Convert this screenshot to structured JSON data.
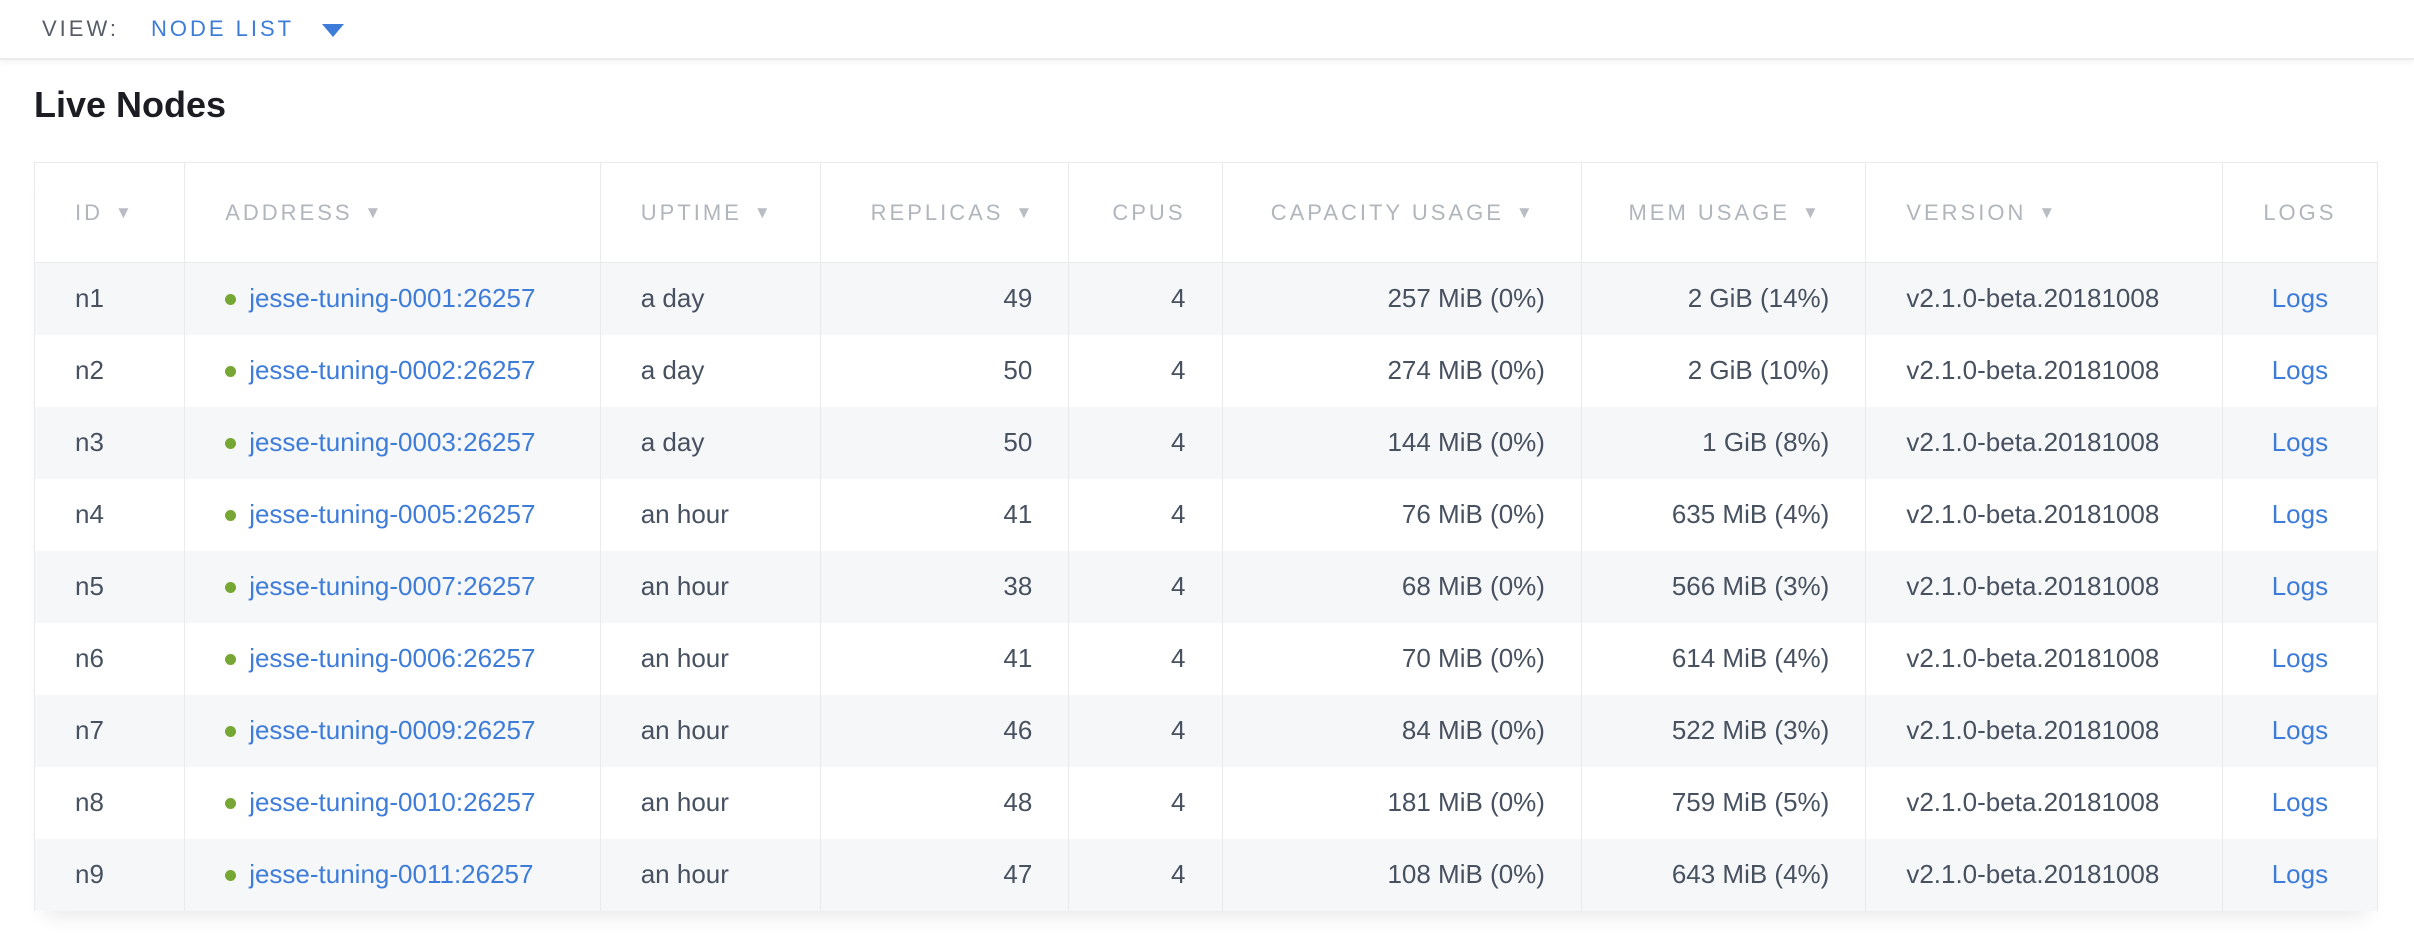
{
  "view_bar": {
    "label": "VIEW:",
    "selected_view": "NODE LIST"
  },
  "page": {
    "title": "Live Nodes"
  },
  "colors": {
    "link_blue": "#3E7CD9",
    "status_live_green": "#76A633",
    "header_text_gray": "#B1B5BC",
    "cell_text_slate": "#475160",
    "row_stripe": "#F6F7F8"
  },
  "table": {
    "columns": [
      {
        "key": "id",
        "label": "ID",
        "sortable": true,
        "align": "left",
        "header_align": "left"
      },
      {
        "key": "address",
        "label": "ADDRESS",
        "sortable": true,
        "align": "left",
        "header_align": "left"
      },
      {
        "key": "uptime",
        "label": "UPTIME",
        "sortable": true,
        "align": "left",
        "header_align": "left"
      },
      {
        "key": "replicas",
        "label": "REPLICAS",
        "sortable": true,
        "align": "right",
        "header_align": "right"
      },
      {
        "key": "cpus",
        "label": "CPUS",
        "sortable": false,
        "align": "right",
        "header_align": "right"
      },
      {
        "key": "capacity_usage",
        "label": "CAPACITY USAGE",
        "sortable": true,
        "align": "right",
        "header_align": "center"
      },
      {
        "key": "mem_usage",
        "label": "MEM USAGE",
        "sortable": true,
        "align": "right",
        "header_align": "center"
      },
      {
        "key": "version",
        "label": "VERSION",
        "sortable": true,
        "align": "left",
        "header_align": "left"
      },
      {
        "key": "logs",
        "label": "LOGS",
        "sortable": false,
        "align": "center",
        "header_align": "center"
      }
    ],
    "rows": [
      {
        "id": "n1",
        "status": "live",
        "address": "jesse-tuning-0001:26257",
        "uptime": "a day",
        "replicas": "49",
        "cpus": "4",
        "capacity_usage": "257 MiB (0%)",
        "mem_usage": "2 GiB (14%)",
        "version": "v2.1.0-beta.20181008",
        "logs": "Logs"
      },
      {
        "id": "n2",
        "status": "live",
        "address": "jesse-tuning-0002:26257",
        "uptime": "a day",
        "replicas": "50",
        "cpus": "4",
        "capacity_usage": "274 MiB (0%)",
        "mem_usage": "2 GiB (10%)",
        "version": "v2.1.0-beta.20181008",
        "logs": "Logs"
      },
      {
        "id": "n3",
        "status": "live",
        "address": "jesse-tuning-0003:26257",
        "uptime": "a day",
        "replicas": "50",
        "cpus": "4",
        "capacity_usage": "144 MiB (0%)",
        "mem_usage": "1 GiB (8%)",
        "version": "v2.1.0-beta.20181008",
        "logs": "Logs"
      },
      {
        "id": "n4",
        "status": "live",
        "address": "jesse-tuning-0005:26257",
        "uptime": "an hour",
        "replicas": "41",
        "cpus": "4",
        "capacity_usage": "76 MiB (0%)",
        "mem_usage": "635 MiB (4%)",
        "version": "v2.1.0-beta.20181008",
        "logs": "Logs"
      },
      {
        "id": "n5",
        "status": "live",
        "address": "jesse-tuning-0007:26257",
        "uptime": "an hour",
        "replicas": "38",
        "cpus": "4",
        "capacity_usage": "68 MiB (0%)",
        "mem_usage": "566 MiB (3%)",
        "version": "v2.1.0-beta.20181008",
        "logs": "Logs"
      },
      {
        "id": "n6",
        "status": "live",
        "address": "jesse-tuning-0006:26257",
        "uptime": "an hour",
        "replicas": "41",
        "cpus": "4",
        "capacity_usage": "70 MiB (0%)",
        "mem_usage": "614 MiB (4%)",
        "version": "v2.1.0-beta.20181008",
        "logs": "Logs"
      },
      {
        "id": "n7",
        "status": "live",
        "address": "jesse-tuning-0009:26257",
        "uptime": "an hour",
        "replicas": "46",
        "cpus": "4",
        "capacity_usage": "84 MiB (0%)",
        "mem_usage": "522 MiB (3%)",
        "version": "v2.1.0-beta.20181008",
        "logs": "Logs"
      },
      {
        "id": "n8",
        "status": "live",
        "address": "jesse-tuning-0010:26257",
        "uptime": "an hour",
        "replicas": "48",
        "cpus": "4",
        "capacity_usage": "181 MiB (0%)",
        "mem_usage": "759 MiB (5%)",
        "version": "v2.1.0-beta.20181008",
        "logs": "Logs"
      },
      {
        "id": "n9",
        "status": "live",
        "address": "jesse-tuning-0011:26257",
        "uptime": "an hour",
        "replicas": "47",
        "cpus": "4",
        "capacity_usage": "108 MiB (0%)",
        "mem_usage": "643 MiB (4%)",
        "version": "v2.1.0-beta.20181008",
        "logs": "Logs"
      }
    ]
  }
}
